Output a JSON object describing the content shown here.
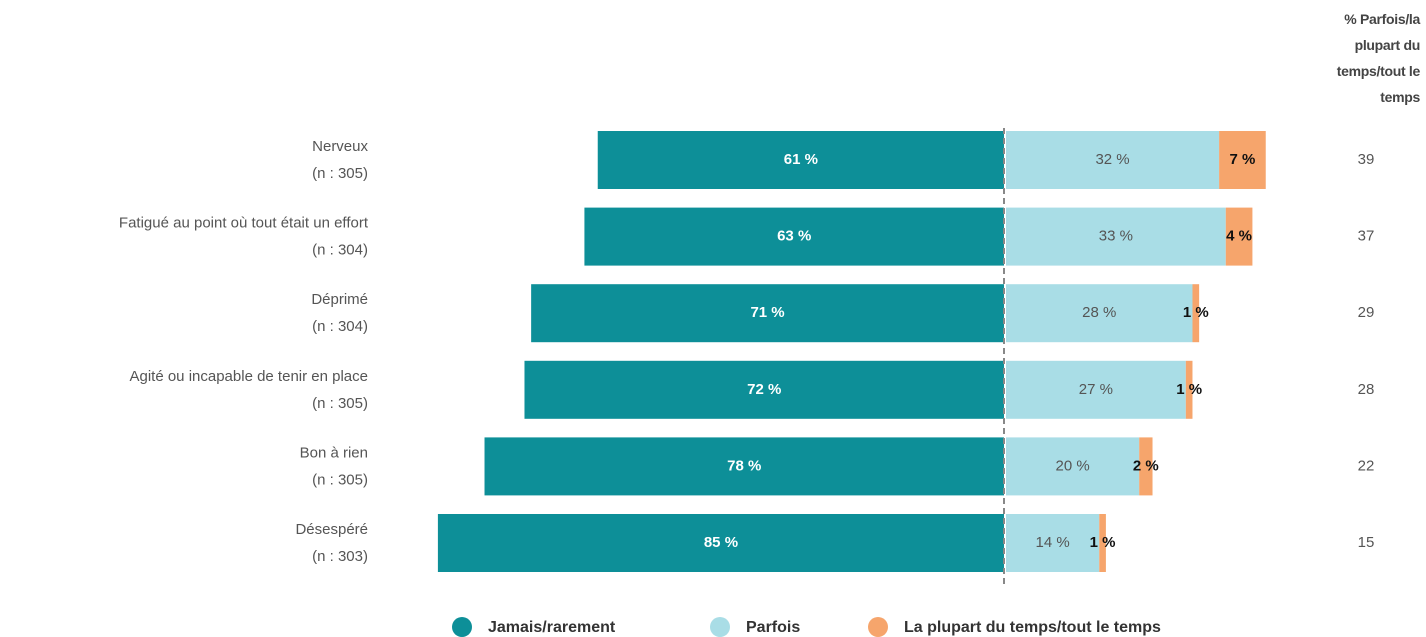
{
  "chart_data": {
    "type": "diverging_bar",
    "categories": [
      "Nerveux",
      "Fatigué au point où tout était un effort",
      "Déprimé",
      "Agité ou incapable de tenir en place",
      "Bon à rien",
      "Désespéré"
    ],
    "category_notes": [
      "(n : 305)",
      "(n : 304)",
      "(n : 304)",
      "(n : 305)",
      "(n : 305)",
      "(n : 303)"
    ],
    "series": [
      {
        "name": "Jamais/rarement",
        "color": "#0d8f98",
        "values": [
          61,
          63,
          71,
          72,
          78,
          85
        ],
        "value_labels": [
          "61 %",
          "63 %",
          "71 %",
          "72 %",
          "78 %",
          "85 %"
        ]
      },
      {
        "name": "Parfois",
        "color": "#a9dde6",
        "values": [
          32,
          33,
          28,
          27,
          20,
          14
        ],
        "value_labels": [
          "32 %",
          "33 %",
          "28 %",
          "27 %",
          "20 %",
          "14 %"
        ]
      },
      {
        "name": "La plupart du temps/tout le temps",
        "color": "#f6a56c",
        "values": [
          7,
          4,
          1,
          1,
          2,
          1
        ],
        "value_labels": [
          "7 %",
          "4 %",
          "1 %",
          "1 %",
          "2 %",
          "1 %"
        ]
      }
    ],
    "totals_heading": "% Parfois/la plupart du temps/tout le temps",
    "totals": [
      39,
      37,
      29,
      28,
      22,
      15
    ]
  }
}
